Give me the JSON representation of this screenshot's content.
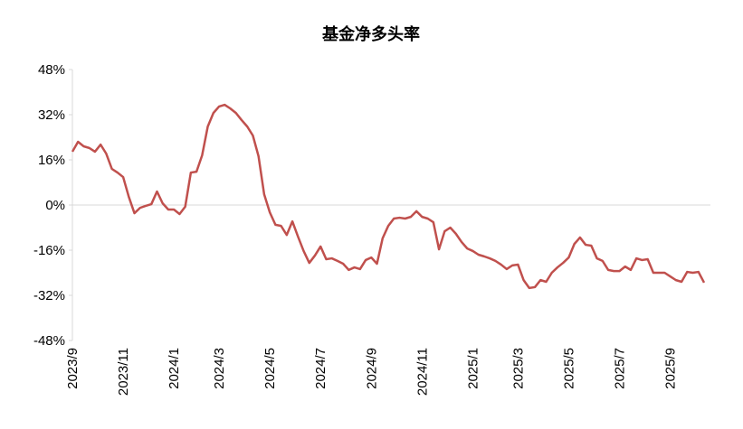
{
  "chart_data": {
    "type": "line",
    "title": "基金净多头率",
    "categories": [
      "2023/9",
      null,
      null,
      null,
      null,
      null,
      null,
      null,
      null,
      "2023/11",
      null,
      null,
      null,
      null,
      null,
      null,
      null,
      null,
      "2024/1",
      null,
      null,
      null,
      null,
      null,
      null,
      null,
      "2024/3",
      null,
      null,
      null,
      null,
      null,
      null,
      null,
      null,
      "2024/5",
      null,
      null,
      null,
      null,
      null,
      null,
      null,
      null,
      "2024/7",
      null,
      null,
      null,
      null,
      null,
      null,
      null,
      null,
      "2024/9",
      null,
      null,
      null,
      null,
      null,
      null,
      null,
      null,
      "2024/11",
      null,
      null,
      null,
      null,
      null,
      null,
      null,
      null,
      "2025/1",
      null,
      null,
      null,
      null,
      null,
      null,
      null,
      "2025/3",
      null,
      null,
      null,
      null,
      null,
      null,
      null,
      null,
      "2025/5",
      null,
      null,
      null,
      null,
      null,
      null,
      null,
      null,
      "2025/7",
      null,
      null,
      null,
      null,
      null,
      null,
      null,
      null,
      "2025/9",
      null,
      null,
      null,
      null,
      null,
      null
    ],
    "series": [
      {
        "color": "#c0504d",
        "values": [
          18.9,
          22.4,
          20.8,
          20.2,
          18.9,
          21.4,
          18.2,
          12.8,
          11.5,
          9.9,
          2.9,
          -2.9,
          -1.0,
          -0.3,
          0.3,
          4.8,
          0.6,
          -1.6,
          -1.6,
          -3.2,
          -0.6,
          11.5,
          11.8,
          17.6,
          27.8,
          32.6,
          34.9,
          35.5,
          34.2,
          32.6,
          30.1,
          27.8,
          24.6,
          17.3,
          3.8,
          -2.6,
          -7.0,
          -7.4,
          -10.6,
          -5.8,
          -11.2,
          -16.3,
          -20.5,
          -17.9,
          -14.7,
          -19.2,
          -18.9,
          -19.8,
          -20.8,
          -23.0,
          -22.1,
          -22.7,
          -19.5,
          -18.6,
          -20.8,
          -11.8,
          -7.4,
          -4.8,
          -4.5,
          -4.8,
          -4.2,
          -2.2,
          -4.2,
          -4.8,
          -6.1,
          -15.7,
          -9.3,
          -8.0,
          -10.2,
          -13.1,
          -15.4,
          -16.3,
          -17.6,
          -18.2,
          -18.9,
          -19.8,
          -21.1,
          -22.7,
          -21.4,
          -21.1,
          -26.6,
          -29.4,
          -29.1,
          -26.6,
          -27.2,
          -24.0,
          -22.1,
          -20.5,
          -18.6,
          -13.8,
          -11.5,
          -14.1,
          -14.4,
          -18.9,
          -19.8,
          -23.0,
          -23.4,
          -23.4,
          -21.8,
          -23.0,
          -18.9,
          -19.5,
          -19.2,
          -24.0,
          -24.0,
          -24.0,
          -25.3,
          -26.6,
          -27.2,
          -23.7,
          -24.0,
          -23.7,
          -27.5
        ]
      }
    ],
    "ylim": [
      -48,
      48
    ],
    "yticks": [
      {
        "value": -48,
        "label": "-48%"
      },
      {
        "value": -32,
        "label": "-32%"
      },
      {
        "value": -16,
        "label": "-16%"
      },
      {
        "value": 0,
        "label": "0%"
      },
      {
        "value": 16,
        "label": "16%"
      },
      {
        "value": 32,
        "label": "32%"
      },
      {
        "value": 48,
        "label": "48%"
      }
    ]
  }
}
